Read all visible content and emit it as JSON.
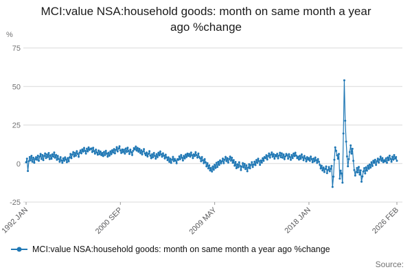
{
  "source_label": "Source:",
  "chart_data": {
    "type": "line",
    "title": "MCI:value NSA:household goods: month on same month a year ago %change",
    "ylabel": "%",
    "xlabel": "",
    "legend": [
      "MCI:value NSA:household goods: month on same month a year ago %change"
    ],
    "legend_position": "bottom-left",
    "grid": "horizontal",
    "line_color": "#1f77b4",
    "grid_color": "#d9d9d9",
    "tick_color": "#999999",
    "ylim": [
      -25,
      75
    ],
    "yticks": [
      75,
      50,
      25,
      0,
      -25
    ],
    "x_start": "1992 JAN",
    "x_end": "2026 FEB",
    "frequency": "monthly",
    "xticks": [
      {
        "index": 0,
        "label": "1992 JAN"
      },
      {
        "index": 104,
        "label": "2000 SEP"
      },
      {
        "index": 208,
        "label": "2009 MAY"
      },
      {
        "index": 312,
        "label": "2018 JAN"
      },
      {
        "index": 409,
        "label": "2026 FEB"
      }
    ],
    "values": [
      0.8,
      3.2,
      -4.8,
      1.5,
      4.2,
      2.1,
      5.0,
      1.2,
      3.8,
      0.5,
      2.9,
      4.1,
      2.5,
      5.1,
      1.8,
      4.4,
      6.2,
      3.0,
      5.5,
      2.2,
      4.8,
      6.5,
      3.6,
      5.9,
      4.2,
      6.8,
      2.9,
      5.4,
      3.1,
      6.0,
      4.5,
      7.2,
      3.8,
      5.6,
      2.4,
      4.9,
      3.0,
      1.2,
      4.1,
      2.0,
      0.5,
      3.3,
      1.8,
      4.0,
      2.6,
      0.9,
      3.5,
      1.5,
      4.0,
      6.2,
      3.5,
      5.8,
      7.4,
      4.6,
      6.9,
      5.1,
      8.0,
      6.3,
      4.4,
      7.1,
      8.5,
      6.7,
      9.2,
      7.8,
      10.1,
      8.3,
      6.5,
      9.6,
      7.9,
      10.4,
      8.8,
      9.5,
      9.8,
      7.5,
      10.2,
      8.1,
      6.4,
      9.0,
      7.2,
      5.8,
      8.4,
      6.1,
      7.8,
      5.5,
      6.8,
      4.9,
      7.5,
      5.6,
      8.2,
      6.4,
      4.5,
      7.0,
      5.2,
      7.9,
      6.1,
      8.6,
      7.2,
      9.4,
      6.6,
      8.8,
      10.6,
      7.9,
      9.8,
      11.2,
      8.5,
      6.9,
      9.1,
      7.4,
      8.9,
      6.4,
      9.7,
      7.6,
      10.3,
      8.1,
      6.2,
      9.0,
      7.3,
      5.6,
      8.2,
      10.0,
      9.2,
      11.0,
      8.4,
      10.1,
      7.7,
      9.5,
      6.8,
      8.6,
      5.9,
      7.8,
      9.3,
      6.5,
      5.4,
      7.1,
      4.6,
      6.3,
      8.0,
      5.2,
      3.5,
      6.0,
      4.1,
      6.8,
      5.0,
      3.2,
      6.1,
      4.2,
      7.0,
      5.3,
      7.8,
      6.0,
      4.4,
      6.6,
      5.1,
      3.3,
      5.7,
      4.0,
      2.2,
      4.0,
      1.1,
      3.2,
      0.4,
      2.5,
      4.3,
      1.6,
      3.0,
      1.9,
      0.2,
      2.8,
      2.4,
      4.6,
      2.9,
      5.5,
      3.8,
      2.0,
      4.9,
      3.3,
      5.8,
      4.2,
      6.4,
      5.0,
      6.2,
      4.5,
      7.1,
      5.4,
      3.6,
      6.0,
      4.8,
      7.3,
      5.5,
      3.9,
      6.5,
      4.3,
      3.4,
      1.5,
      4.2,
      2.1,
      0.3,
      2.8,
      0.8,
      -1.8,
      0.2,
      -3.2,
      -1.2,
      -4.5,
      -2.8,
      -5.2,
      -1.9,
      -4.0,
      -0.8,
      -2.9,
      0.4,
      -2.2,
      1.1,
      -0.9,
      2.0,
      0.1,
      1.4,
      3.2,
      0.2,
      2.5,
      4.3,
      1.6,
      3.5,
      0.6,
      2.8,
      4.5,
      1.9,
      3.8,
      0.5,
      2.2,
      -1.4,
      1.0,
      -3.0,
      -0.5,
      -2.4,
      0.8,
      -1.6,
      -4.2,
      -2.0,
      0.3,
      -2.5,
      -0.2,
      -3.6,
      -1.2,
      -5.0,
      -2.6,
      -0.4,
      -3.1,
      -1.0,
      0.9,
      -2.2,
      -0.6,
      1.2,
      -1.0,
      2.3,
      0.4,
      3.1,
      1.5,
      -0.8,
      2.0,
      0.6,
      3.4,
      1.8,
      4.2,
      3.5,
      5.4,
      2.6,
      4.8,
      6.5,
      3.9,
      5.7,
      7.2,
      4.4,
      6.1,
      3.2,
      5.5,
      4.6,
      6.3,
      3.4,
      5.2,
      7.0,
      4.1,
      6.6,
      3.8,
      5.9,
      2.9,
      4.7,
      6.2,
      5.3,
      3.2,
      6.1,
      4.3,
      2.4,
      5.5,
      3.6,
      6.4,
      4.8,
      7.0,
      5.2,
      3.5,
      4.4,
      2.6,
      5.0,
      3.1,
      5.9,
      4.0,
      2.2,
      4.9,
      3.3,
      1.4,
      4.1,
      2.5,
      3.6,
      1.8,
      4.5,
      2.8,
      0.9,
      3.2,
      1.5,
      3.9,
      2.1,
      0.4,
      2.9,
      1.2,
      -0.8,
      -3.2,
      -1.5,
      -4.4,
      -2.6,
      -5.5,
      -3.5,
      -1.9,
      -6.2,
      -4.1,
      -2.3,
      -5.0,
      -3.4,
      -1.6,
      -15.2,
      -8.5,
      2.4,
      10.5,
      8.2,
      5.4,
      3.1,
      6.2,
      -9.8,
      -4.6,
      -6.5,
      -12.4,
      19.5,
      54.0,
      27.8,
      14.2,
      4.6,
      -1.8,
      2.9,
      7.5,
      11.8,
      6.4,
      9.6,
      1.8,
      -4.2,
      -7.8,
      -5.5,
      -2.9,
      -5.8,
      -2.2,
      -7.2,
      -4.4,
      -11.8,
      -8.4,
      -5.2,
      -3.0,
      -6.4,
      -2.4,
      -4.6,
      -1.4,
      -3.4,
      -0.6,
      -2.6,
      0.8,
      -1.6,
      1.8,
      0.4,
      2.4,
      -0.9,
      1.5,
      3.2,
      0.6,
      2.6,
      4.4,
      1.8,
      3.5,
      0.9,
      2.2,
      1.4,
      3.4,
      0.5,
      4.0,
      2.2,
      5.1,
      3.0,
      1.2,
      4.4,
      2.5,
      5.5,
      3.2,
      4.2,
      1.8
    ]
  }
}
